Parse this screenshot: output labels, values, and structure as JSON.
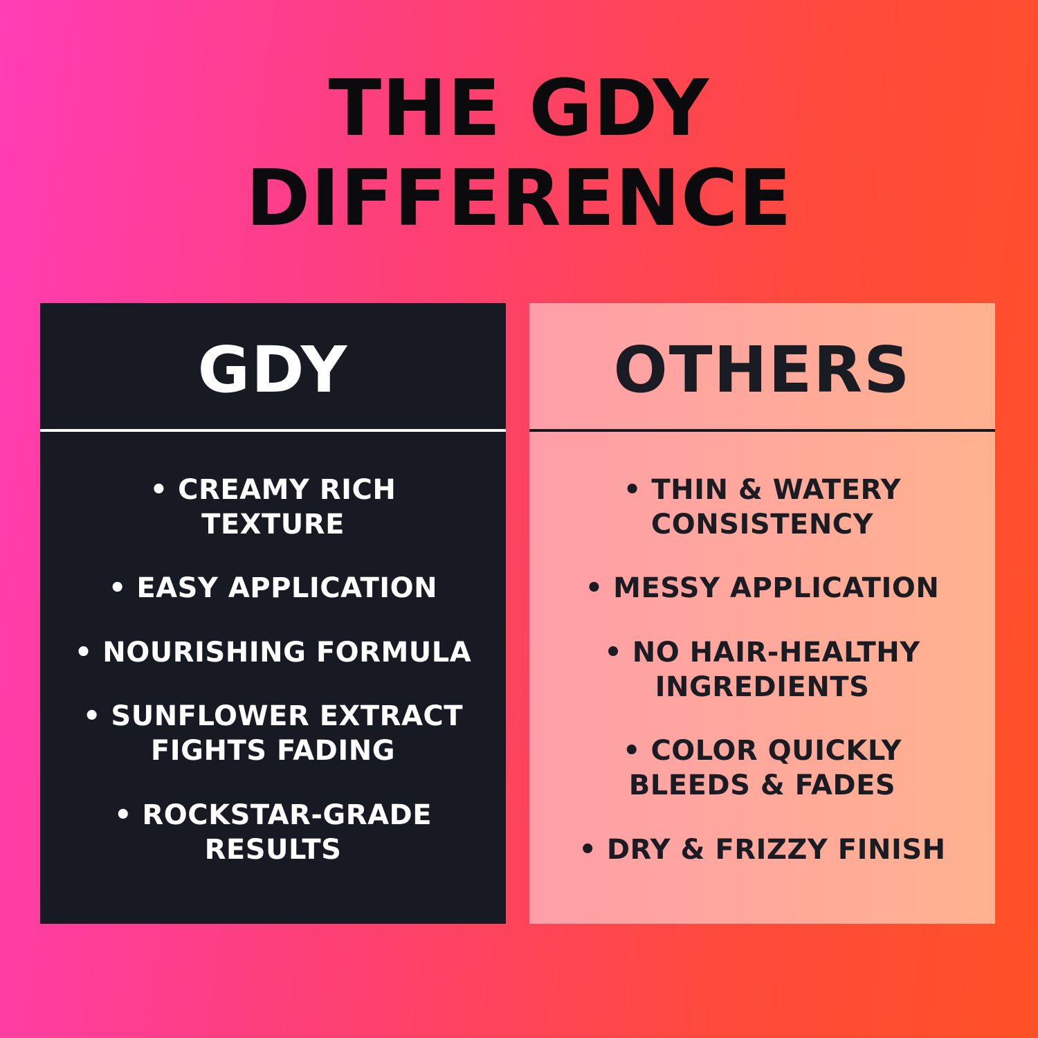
{
  "title": "THE GDY\nDIFFERENCE",
  "left_panel": {
    "heading": "GDY",
    "items": [
      "• CREAMY RICH\nTEXTURE",
      "• EASY APPLICATION",
      "• NOURISHING FORMULA",
      "• SUNFLOWER EXTRACT\nFIGHTS FADING",
      "• ROCKSTAR-GRADE\nRESULTS"
    ]
  },
  "right_panel": {
    "heading": "OTHERS",
    "items": [
      "• THIN & WATERY\nCONSISTENCY",
      "• MESSY APPLICATION",
      "• NO HAIR-HEALTHY\nINGREDIENTS",
      "• COLOR QUICKLY\nBLEEDS & FADES",
      "• DRY & FRIZZY FINISH"
    ]
  },
  "colors": {
    "background_gradient_start": "#ff3db5",
    "background_gradient_end": "#ff5127",
    "dark_panel_background": "#181a23",
    "pink_panel_gradient_start": "#ff9ea8",
    "pink_panel_gradient_end": "#ffb28f",
    "title_text": "#0b0b0d",
    "dark_panel_text": "#ffffff",
    "pink_panel_text": "#1a1c24"
  }
}
